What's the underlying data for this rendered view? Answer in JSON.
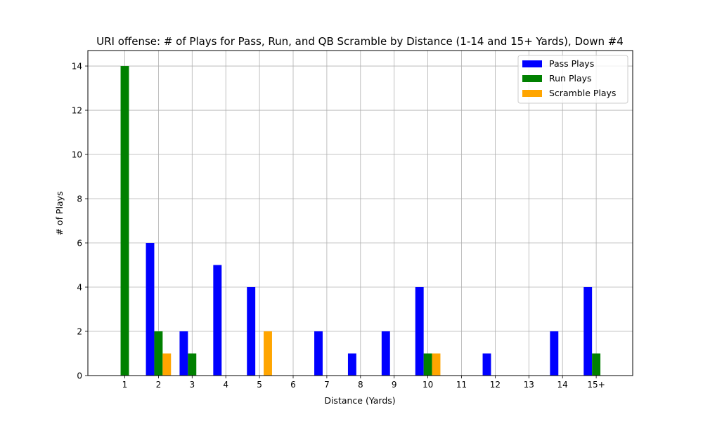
{
  "chart_data": {
    "type": "bar",
    "title": "URI offense: # of Plays for Pass, Run, and QB Scramble by Distance (1-14 and 15+ Yards), Down #4",
    "xlabel": "Distance (Yards)",
    "ylabel": "# of Plays",
    "categories": [
      "1",
      "2",
      "3",
      "4",
      "5",
      "6",
      "7",
      "8",
      "9",
      "10",
      "11",
      "12",
      "13",
      "14",
      "15+"
    ],
    "ylim": [
      0,
      14.7
    ],
    "yticks": [
      0,
      2,
      4,
      6,
      8,
      10,
      12,
      14
    ],
    "grid": true,
    "legend_position": "upper right",
    "series": [
      {
        "name": "Pass Plays",
        "color": "#0000ff",
        "values": [
          0,
          6,
          2,
          5,
          4,
          0,
          2,
          1,
          2,
          4,
          0,
          1,
          0,
          2,
          4
        ]
      },
      {
        "name": "Run Plays",
        "color": "#008000",
        "values": [
          14,
          2,
          1,
          0,
          0,
          0,
          0,
          0,
          0,
          1,
          0,
          0,
          0,
          0,
          1
        ]
      },
      {
        "name": "Scramble Plays",
        "color": "#ffa500",
        "values": [
          0,
          1,
          0,
          0,
          2,
          0,
          0,
          0,
          0,
          1,
          0,
          0,
          0,
          0,
          0
        ]
      }
    ]
  }
}
